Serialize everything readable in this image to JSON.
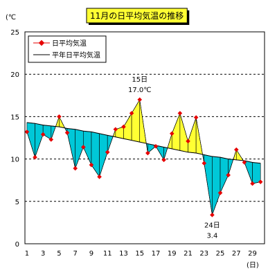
{
  "chart_data": {
    "type": "line",
    "title": "11月の日平均気温の推移",
    "ylabel": "(℃",
    "xlabel": "(日)",
    "ylim": [
      0,
      25
    ],
    "yticks": [
      0,
      5,
      10,
      15,
      20,
      25
    ],
    "xticks": [
      1,
      3,
      5,
      7,
      9,
      11,
      13,
      15,
      17,
      19,
      21,
      23,
      25,
      27,
      29
    ],
    "grid": "horizontal-dashed",
    "legend_position": "top-left",
    "colors": {
      "above_fill": "#ffff33",
      "below_fill": "#00c8d8",
      "series_line": "#000000",
      "marker": "#e60000",
      "title_bg": "#ffff33"
    },
    "x": [
      1,
      2,
      3,
      4,
      5,
      6,
      7,
      8,
      9,
      10,
      11,
      12,
      13,
      14,
      15,
      16,
      17,
      18,
      19,
      20,
      21,
      22,
      23,
      24,
      25,
      26,
      27,
      28,
      29,
      30
    ],
    "series": [
      {
        "name": "日平均気温",
        "values": [
          13.2,
          10.2,
          12.9,
          12.3,
          15.0,
          13.1,
          8.9,
          11.4,
          9.3,
          7.9,
          10.8,
          13.5,
          13.8,
          15.4,
          17.0,
          10.7,
          11.5,
          9.9,
          13.0,
          15.4,
          12.1,
          14.9,
          9.5,
          3.4,
          6.0,
          8.1,
          11.1,
          9.6,
          7.1,
          7.3
        ]
      },
      {
        "name": "平年日平均気温",
        "values": [
          14.3,
          14.2,
          14.0,
          13.9,
          13.8,
          13.6,
          13.5,
          13.3,
          13.2,
          13.0,
          12.8,
          12.6,
          12.4,
          12.2,
          12.0,
          11.8,
          11.6,
          11.4,
          11.2,
          11.0,
          10.8,
          10.7,
          10.5,
          10.3,
          10.2,
          10.0,
          9.9,
          9.8,
          9.6,
          9.5
        ]
      }
    ],
    "annotations": [
      {
        "day": "15日",
        "value": "17.0℃"
      },
      {
        "day": "24日",
        "value": "3.4"
      }
    ]
  }
}
